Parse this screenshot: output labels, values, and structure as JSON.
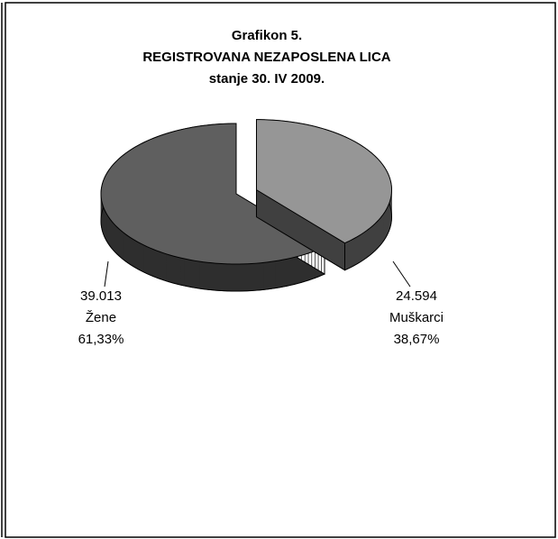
{
  "chart_data": {
    "type": "pie",
    "title": [
      "Grafikon 5.",
      "REGISTROVANA NEZAPOSLENA LICA",
      "stanje 30. IV 2009."
    ],
    "categories": [
      "Muškarci",
      "Žene"
    ],
    "values": [
      24594,
      39013
    ],
    "value_labels": [
      "24.594",
      "39.013"
    ],
    "percents": [
      38.67,
      61.33
    ],
    "percent_labels": [
      "38,67%",
      "61,33%"
    ],
    "colors": [
      "#969696",
      "#5f5f5f"
    ],
    "side_colors": [
      "#404040",
      "#2e2e2e"
    ],
    "exploded": [
      true,
      false
    ],
    "three_d": true
  }
}
